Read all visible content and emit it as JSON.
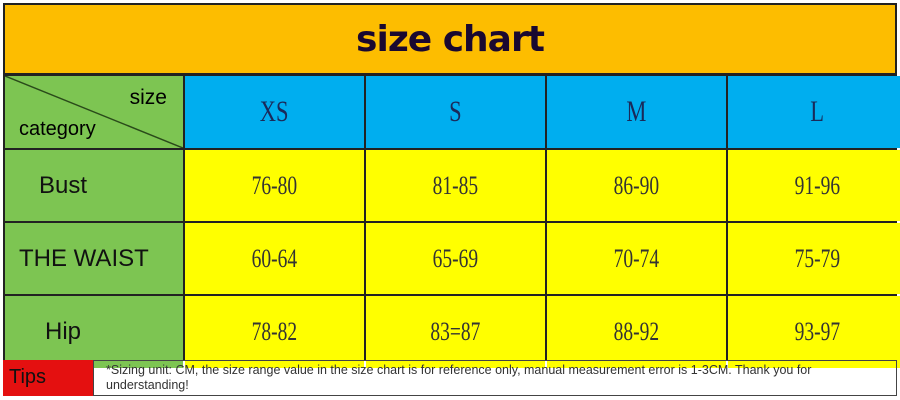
{
  "title": "size chart",
  "corner": {
    "top": "size",
    "bottom": "category"
  },
  "sizes": [
    "XS",
    "S",
    "M",
    "L"
  ],
  "rows": [
    {
      "category": "Bust",
      "values": [
        "76-80",
        "81-85",
        "86-90",
        "91-96"
      ]
    },
    {
      "category": "THE WAIST",
      "values": [
        "60-64",
        "65-69",
        "70-74",
        "75-79"
      ]
    },
    {
      "category": "Hip",
      "values": [
        "78-82",
        "83=87",
        "88-92",
        "93-97"
      ]
    }
  ],
  "tips": {
    "label": "Tips",
    "text": "*Sizing unit: CM, the size range value in the size chart is for reference only, manual measurement error is 1-3CM. Thank you for understanding!"
  },
  "colors": {
    "title": "#fdbd00",
    "header": "#00aeef",
    "values": "#ffff00",
    "category": "#7dc552",
    "tips": "#e41010"
  }
}
